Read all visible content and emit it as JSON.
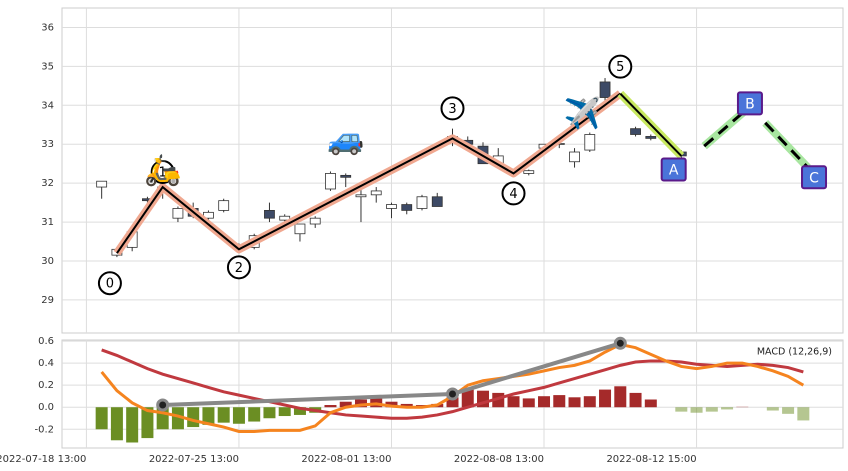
{
  "chart_data": [
    {
      "type": "candlestick",
      "xlim": [
        -2.6,
        48.6
      ],
      "ylim": [
        28.15,
        36.5
      ],
      "yticks": [
        29,
        30,
        31,
        32,
        33,
        34,
        35,
        36
      ],
      "xticks": [
        {
          "value": -1,
          "label": "2022-07-18 13:00"
        },
        {
          "value": 9,
          "label": "2022-07-25 13:00"
        },
        {
          "value": 19,
          "label": "2022-08-01 13:00"
        },
        {
          "value": 29,
          "label": "2022-08-08 13:00"
        },
        {
          "value": 39,
          "label": "2022-08-12 15:00"
        }
      ],
      "grid": true,
      "up_color": "#ffffff",
      "down_color": "#3d4a66",
      "x": [
        0,
        1,
        2,
        3,
        4,
        5,
        6,
        7,
        8,
        9,
        10,
        11,
        12,
        13,
        14,
        15,
        16,
        17,
        18,
        19,
        20,
        21,
        22,
        23,
        24,
        25,
        26,
        28,
        29,
        30,
        31,
        32,
        33,
        35,
        36,
        38
      ],
      "open": [
        31.9,
        30.15,
        30.35,
        31.6,
        31.9,
        31.1,
        31.35,
        31.1,
        31.3,
        30.3,
        30.35,
        31.3,
        31.05,
        30.7,
        30.95,
        31.85,
        32.2,
        31.65,
        31.7,
        31.35,
        31.45,
        31.35,
        31.65,
        33.05,
        33.1,
        32.95,
        32.5,
        32.25,
        32.9,
        33.0,
        32.55,
        32.85,
        34.6,
        33.4,
        33.2,
        32.8
      ],
      "high": [
        32.05,
        30.35,
        30.8,
        31.65,
        32.0,
        31.4,
        31.5,
        31.3,
        31.6,
        30.45,
        30.7,
        31.5,
        31.2,
        30.95,
        31.15,
        32.3,
        32.25,
        31.9,
        31.9,
        31.5,
        31.5,
        31.7,
        31.75,
        33.4,
        33.2,
        33.05,
        32.9,
        32.35,
        33.0,
        33.1,
        32.9,
        33.3,
        34.7,
        33.45,
        33.25,
        32.85
      ],
      "low": [
        31.6,
        30.1,
        30.25,
        31.5,
        31.6,
        31.0,
        31.1,
        31.05,
        31.25,
        30.2,
        30.3,
        31.0,
        31.0,
        30.5,
        30.85,
        31.8,
        31.9,
        31.0,
        31.5,
        31.1,
        31.2,
        31.3,
        31.4,
        32.95,
        32.9,
        32.5,
        32.4,
        32.2,
        32.85,
        32.9,
        32.4,
        32.8,
        34.1,
        33.2,
        33.1,
        32.6
      ],
      "close": [
        32.05,
        30.3,
        30.75,
        31.55,
        31.8,
        31.35,
        31.15,
        31.25,
        31.55,
        30.4,
        30.65,
        31.1,
        31.15,
        30.95,
        31.1,
        32.25,
        32.15,
        31.7,
        31.8,
        31.45,
        31.3,
        31.65,
        31.4,
        33.2,
        33.0,
        32.5,
        32.7,
        32.32,
        33.0,
        33.02,
        32.8,
        33.25,
        34.2,
        33.25,
        33.15,
        32.7
      ],
      "waves": {
        "labels": [
          "0",
          "1",
          "2",
          "3",
          "4",
          "5"
        ],
        "x": [
          1,
          4,
          9,
          23,
          27,
          34
        ],
        "y": [
          30.2,
          31.9,
          30.3,
          33.15,
          32.25,
          34.3
        ],
        "color": "#000000",
        "shadow": "#f0a890"
      },
      "correction": {
        "labels": [
          "A",
          "B",
          "C"
        ],
        "x": [
          37.5,
          42.5,
          46.7
        ],
        "y": [
          32.35,
          34.05,
          32.15
        ],
        "color": "#4a74d9"
      },
      "correction_lines": [
        {
          "x": [
            34,
            38
          ],
          "y": [
            34.3,
            32.7
          ],
          "style": "solid"
        },
        {
          "x": [
            39.5,
            42.3
          ],
          "y": [
            32.95,
            33.9
          ],
          "style": "dashed"
        },
        {
          "x": [
            43.5,
            46.3
          ],
          "y": [
            33.55,
            32.4
          ],
          "style": "dashed"
        }
      ],
      "icons": {
        "labels": [
          "🛵",
          "🚙",
          "✈️"
        ],
        "x": [
          4,
          16,
          31.5
        ],
        "y": [
          32.3,
          33.1,
          33.75
        ]
      }
    },
    {
      "type": "macd",
      "label": "MACD (12,26,9)",
      "xlim": [
        -2.6,
        48.6
      ],
      "ylim": [
        -0.37,
        0.61
      ],
      "yticks": [
        -0.2,
        {
          "value": 0,
          "label": "0.0"
        },
        0.2,
        0.4,
        0.6
      ],
      "grid": true,
      "histogram": [
        -0.2,
        -0.3,
        -0.32,
        -0.28,
        -0.2,
        -0.2,
        -0.18,
        -0.16,
        -0.14,
        -0.15,
        -0.13,
        -0.1,
        -0.08,
        -0.07,
        -0.05,
        0.02,
        0.05,
        0.07,
        0.08,
        0.05,
        0.03,
        0.02,
        0.03,
        0.09,
        0.16,
        0.15,
        0.13,
        0.1,
        0.08,
        0.1,
        0.11,
        0.09,
        0.1,
        0.16,
        0.19,
        0.13,
        0.07,
        null,
        -0.04,
        -0.05,
        -0.04,
        -0.02,
        0.005,
        null,
        -0.03,
        -0.06,
        -0.12
      ],
      "hist_colors": {
        "positive": "#a52a2a",
        "negative": "#6b8e23"
      },
      "series": [
        {
          "color": "#c0393f",
          "values": [
            0.52,
            0.47,
            0.41,
            0.35,
            0.3,
            0.26,
            0.22,
            0.18,
            0.14,
            0.11,
            0.08,
            0.05,
            0.02,
            -0.01,
            -0.03,
            -0.05,
            -0.07,
            -0.08,
            -0.09,
            -0.1,
            -0.1,
            -0.09,
            -0.07,
            -0.04,
            0.0,
            0.04,
            0.08,
            0.12,
            0.15,
            0.18,
            0.22,
            0.26,
            0.3,
            0.34,
            0.38,
            0.41,
            0.42,
            0.42,
            0.41,
            0.39,
            0.38,
            0.37,
            0.38,
            0.39,
            0.38,
            0.36,
            0.32
          ]
        },
        {
          "color": "#f5841f",
          "values": [
            0.32,
            0.15,
            0.04,
            -0.03,
            -0.05,
            -0.08,
            -0.12,
            -0.15,
            -0.18,
            -0.22,
            -0.22,
            -0.21,
            -0.21,
            -0.21,
            -0.17,
            -0.05,
            0.0,
            0.02,
            0.03,
            0.01,
            0.0,
            0.0,
            0.02,
            0.1,
            0.2,
            0.24,
            0.26,
            0.28,
            0.3,
            0.33,
            0.36,
            0.38,
            0.42,
            0.5,
            0.57,
            0.54,
            0.48,
            0.42,
            0.37,
            0.35,
            0.37,
            0.4,
            0.4,
            0.37,
            0.33,
            0.28,
            0.2
          ]
        }
      ],
      "trend": {
        "x": [
          4,
          23,
          34
        ],
        "y": [
          0.02,
          0.12,
          0.58
        ],
        "color": "#888888"
      }
    }
  ]
}
